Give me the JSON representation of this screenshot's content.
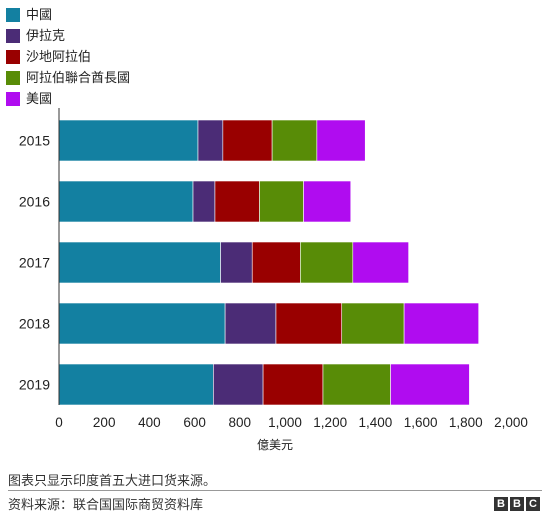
{
  "chart_data": {
    "type": "bar",
    "orientation": "horizontal",
    "stacked": true,
    "categories": [
      "2015",
      "2016",
      "2017",
      "2018",
      "2019"
    ],
    "series": [
      {
        "name": "中國",
        "color": "#1380a1",
        "values": [
          615,
          593,
          715,
          735,
          683
        ]
      },
      {
        "name": "伊拉克",
        "color": "#4b2c76",
        "values": [
          110,
          97,
          140,
          225,
          220
        ]
      },
      {
        "name": "沙地阿拉伯",
        "color": "#990000",
        "values": [
          218,
          197,
          213,
          291,
          265
        ]
      },
      {
        "name": "阿拉伯聯合酋長國",
        "color": "#588c07",
        "values": [
          198,
          195,
          232,
          276,
          299
        ]
      },
      {
        "name": "美國",
        "color": "#b00cf0",
        "values": [
          214,
          209,
          247,
          330,
          349
        ]
      }
    ],
    "xlim": [
      0,
      2000
    ],
    "xticks": [
      "0",
      "200",
      "400",
      "600",
      "800",
      "1,000",
      "1,200",
      "1,400",
      "1,600",
      "1,800",
      "2,000"
    ],
    "xlabel": "億美元",
    "ylabel": "",
    "legend_position": "top-left",
    "grid": false
  },
  "notes": {
    "footnote": "图表只显示印度首五大进口货来源。",
    "source": "资料来源：联合国国际商贸资料库"
  },
  "logo": {
    "letters": [
      "B",
      "B",
      "C"
    ]
  }
}
